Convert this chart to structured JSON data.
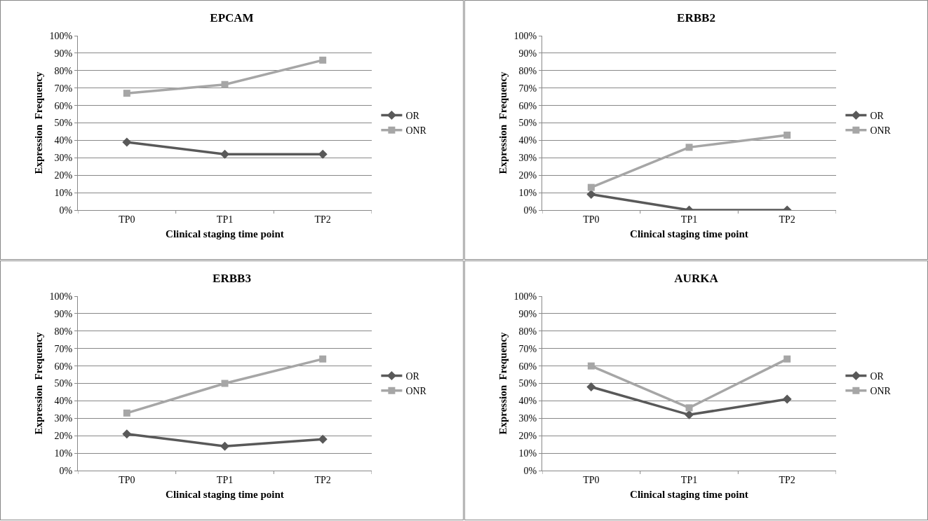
{
  "chart_data": [
    {
      "type": "line",
      "title": "EPCAM",
      "xlabel": "Clinical staging time point",
      "ylabel": "Expression  Frequency",
      "categories": [
        "TP0",
        "TP1",
        "TP2"
      ],
      "series": [
        {
          "name": "OR",
          "color": "#595959",
          "marker": "diamond",
          "values": [
            39,
            32,
            32
          ]
        },
        {
          "name": "ONR",
          "color": "#a6a6a6",
          "marker": "square",
          "values": [
            67,
            72,
            86
          ]
        }
      ],
      "ylim": [
        0,
        100
      ],
      "yticks": [
        {
          "value": 0,
          "label": "0%"
        },
        {
          "value": 10,
          "label": "10%"
        },
        {
          "value": 20,
          "label": "20%"
        },
        {
          "value": 30,
          "label": "30%"
        },
        {
          "value": 40,
          "label": "40%"
        },
        {
          "value": 50,
          "label": "50%"
        },
        {
          "value": 60,
          "label": "60%"
        },
        {
          "value": 70,
          "label": "70%"
        },
        {
          "value": 80,
          "label": "80%"
        },
        {
          "value": 90,
          "label": "90%"
        },
        {
          "value": 100,
          "label": "100%"
        }
      ],
      "grid": "y",
      "legend": "right",
      "line_style": "solid"
    },
    {
      "type": "line",
      "title": "ERBB2",
      "xlabel": "Clinical staging time point",
      "ylabel": "Expression  Frequency",
      "categories": [
        "TP0",
        "TP1",
        "TP2"
      ],
      "series": [
        {
          "name": "OR",
          "color": "#595959",
          "marker": "diamond",
          "values": [
            9,
            0,
            0
          ]
        },
        {
          "name": "ONR",
          "color": "#a6a6a6",
          "marker": "square",
          "values": [
            13,
            36,
            43
          ]
        }
      ],
      "ylim": [
        0,
        100
      ],
      "yticks": [
        {
          "value": 0,
          "label": "0%"
        },
        {
          "value": 10,
          "label": "10%"
        },
        {
          "value": 20,
          "label": "20%"
        },
        {
          "value": 30,
          "label": "30%"
        },
        {
          "value": 40,
          "label": "40%"
        },
        {
          "value": 50,
          "label": "50%"
        },
        {
          "value": 60,
          "label": "60%"
        },
        {
          "value": 70,
          "label": "70%"
        },
        {
          "value": 80,
          "label": "80%"
        },
        {
          "value": 90,
          "label": "90%"
        },
        {
          "value": 100,
          "label": "100%"
        }
      ],
      "grid": "y",
      "legend": "right",
      "line_style": "solid"
    },
    {
      "type": "line",
      "title": "ERBB3",
      "xlabel": "Clinical staging time point",
      "ylabel": "Expression  Frequency",
      "categories": [
        "TP0",
        "TP1",
        "TP2"
      ],
      "series": [
        {
          "name": "OR",
          "color": "#595959",
          "marker": "diamond",
          "values": [
            21,
            14,
            18
          ]
        },
        {
          "name": "ONR",
          "color": "#a6a6a6",
          "marker": "square",
          "values": [
            33,
            50,
            64
          ]
        }
      ],
      "ylim": [
        0,
        100
      ],
      "yticks": [
        {
          "value": 0,
          "label": "0%"
        },
        {
          "value": 10,
          "label": "10%"
        },
        {
          "value": 20,
          "label": "20%"
        },
        {
          "value": 30,
          "label": "30%"
        },
        {
          "value": 40,
          "label": "40%"
        },
        {
          "value": 50,
          "label": "50%"
        },
        {
          "value": 60,
          "label": "60%"
        },
        {
          "value": 70,
          "label": "70%"
        },
        {
          "value": 80,
          "label": "80%"
        },
        {
          "value": 90,
          "label": "90%"
        },
        {
          "value": 100,
          "label": "100%"
        }
      ],
      "grid": "y",
      "legend": "right",
      "line_style": "solid"
    },
    {
      "type": "line",
      "title": "AURKA",
      "xlabel": "Clinical staging time point",
      "ylabel": "Expression  Frequency",
      "categories": [
        "TP0",
        "TP1",
        "TP2"
      ],
      "series": [
        {
          "name": "OR",
          "color": "#595959",
          "marker": "diamond",
          "values": [
            48,
            32,
            41
          ]
        },
        {
          "name": "ONR",
          "color": "#a6a6a6",
          "marker": "square",
          "values": [
            60,
            36,
            64
          ]
        }
      ],
      "ylim": [
        0,
        100
      ],
      "yticks": [
        {
          "value": 0,
          "label": "0%"
        },
        {
          "value": 10,
          "label": "10%"
        },
        {
          "value": 20,
          "label": "20%"
        },
        {
          "value": 30,
          "label": "30%"
        },
        {
          "value": 40,
          "label": "40%"
        },
        {
          "value": 50,
          "label": "50%"
        },
        {
          "value": 60,
          "label": "60%"
        },
        {
          "value": 70,
          "label": "70%"
        },
        {
          "value": 80,
          "label": "80%"
        },
        {
          "value": 90,
          "label": "90%"
        },
        {
          "value": 100,
          "label": "100%"
        }
      ],
      "grid": "y",
      "legend": "right",
      "line_style": "solid"
    }
  ]
}
